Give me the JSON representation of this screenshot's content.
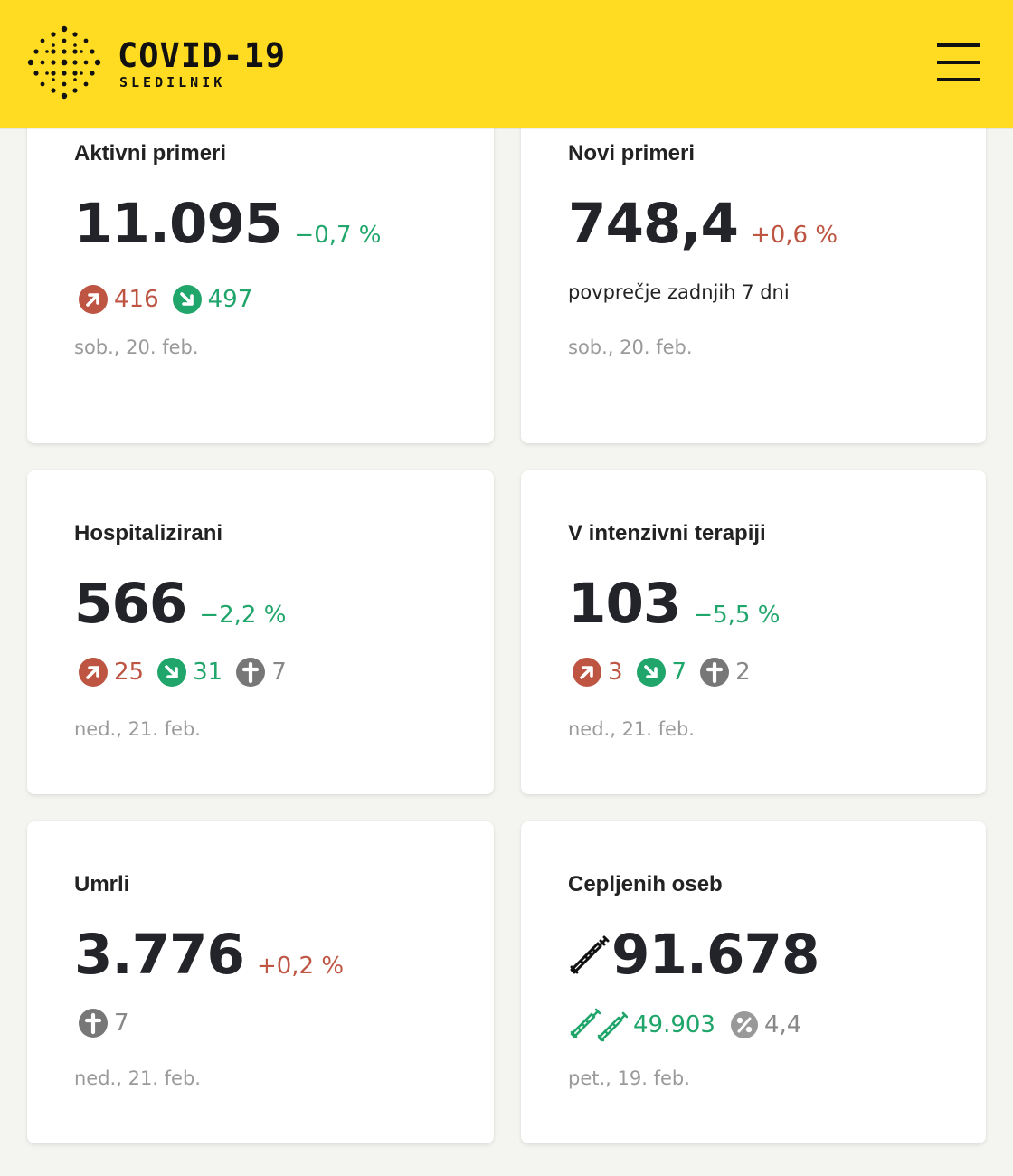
{
  "header": {
    "title": "COVID-19",
    "subtitle": "SLEDILNIK",
    "logo_icon": "dots-logo-icon",
    "menu_icon": "hamburger-menu-icon",
    "background": "#ffdb22"
  },
  "colors": {
    "up": "#be5543",
    "down": "#20a56b",
    "deceased": "#777777",
    "text": "#23232a"
  },
  "cards": [
    {
      "title": "Aktivni primeri",
      "value": "11.095",
      "change": "−0,7 %",
      "change_color": "green",
      "stats": [
        {
          "icon": "arrow-up-right-icon",
          "value": "416",
          "color": "red"
        },
        {
          "icon": "arrow-down-right-icon",
          "value": "497",
          "color": "green"
        }
      ],
      "date": "sob., 20. feb."
    },
    {
      "title": "Novi primeri",
      "value": "748,4",
      "change": "+0,6 %",
      "change_color": "red",
      "note": "povprečje zadnjih 7 dni",
      "date": "sob., 20. feb."
    },
    {
      "title": "Hospitalizirani",
      "value": "566",
      "change": "−2,2 %",
      "change_color": "green",
      "stats": [
        {
          "icon": "arrow-up-right-icon",
          "value": "25",
          "color": "red"
        },
        {
          "icon": "arrow-down-right-icon",
          "value": "31",
          "color": "green"
        },
        {
          "icon": "cross-icon",
          "value": "7",
          "color": "grey"
        }
      ],
      "date": "ned., 21. feb."
    },
    {
      "title": "V intenzivni terapiji",
      "value": "103",
      "change": "−5,5 %",
      "change_color": "green",
      "stats": [
        {
          "icon": "arrow-up-right-icon",
          "value": "3",
          "color": "red"
        },
        {
          "icon": "arrow-down-right-icon",
          "value": "7",
          "color": "green"
        },
        {
          "icon": "cross-icon",
          "value": "2",
          "color": "grey"
        }
      ],
      "date": "ned., 21. feb."
    },
    {
      "title": "Umrli",
      "value": "3.776",
      "change": "+0,2 %",
      "change_color": "red",
      "stats": [
        {
          "icon": "cross-icon",
          "value": "7",
          "color": "grey"
        }
      ],
      "date": "ned., 21. feb."
    },
    {
      "title": "Cepljenih oseb",
      "value": "91.678",
      "value_icon": "syringe-icon",
      "stats": [
        {
          "icon": "double-syringe-icon",
          "value": "49.903",
          "color": "green"
        },
        {
          "icon": "percent-icon",
          "value": "4,4",
          "color": "grey"
        }
      ],
      "date": "pet., 19. feb."
    }
  ]
}
